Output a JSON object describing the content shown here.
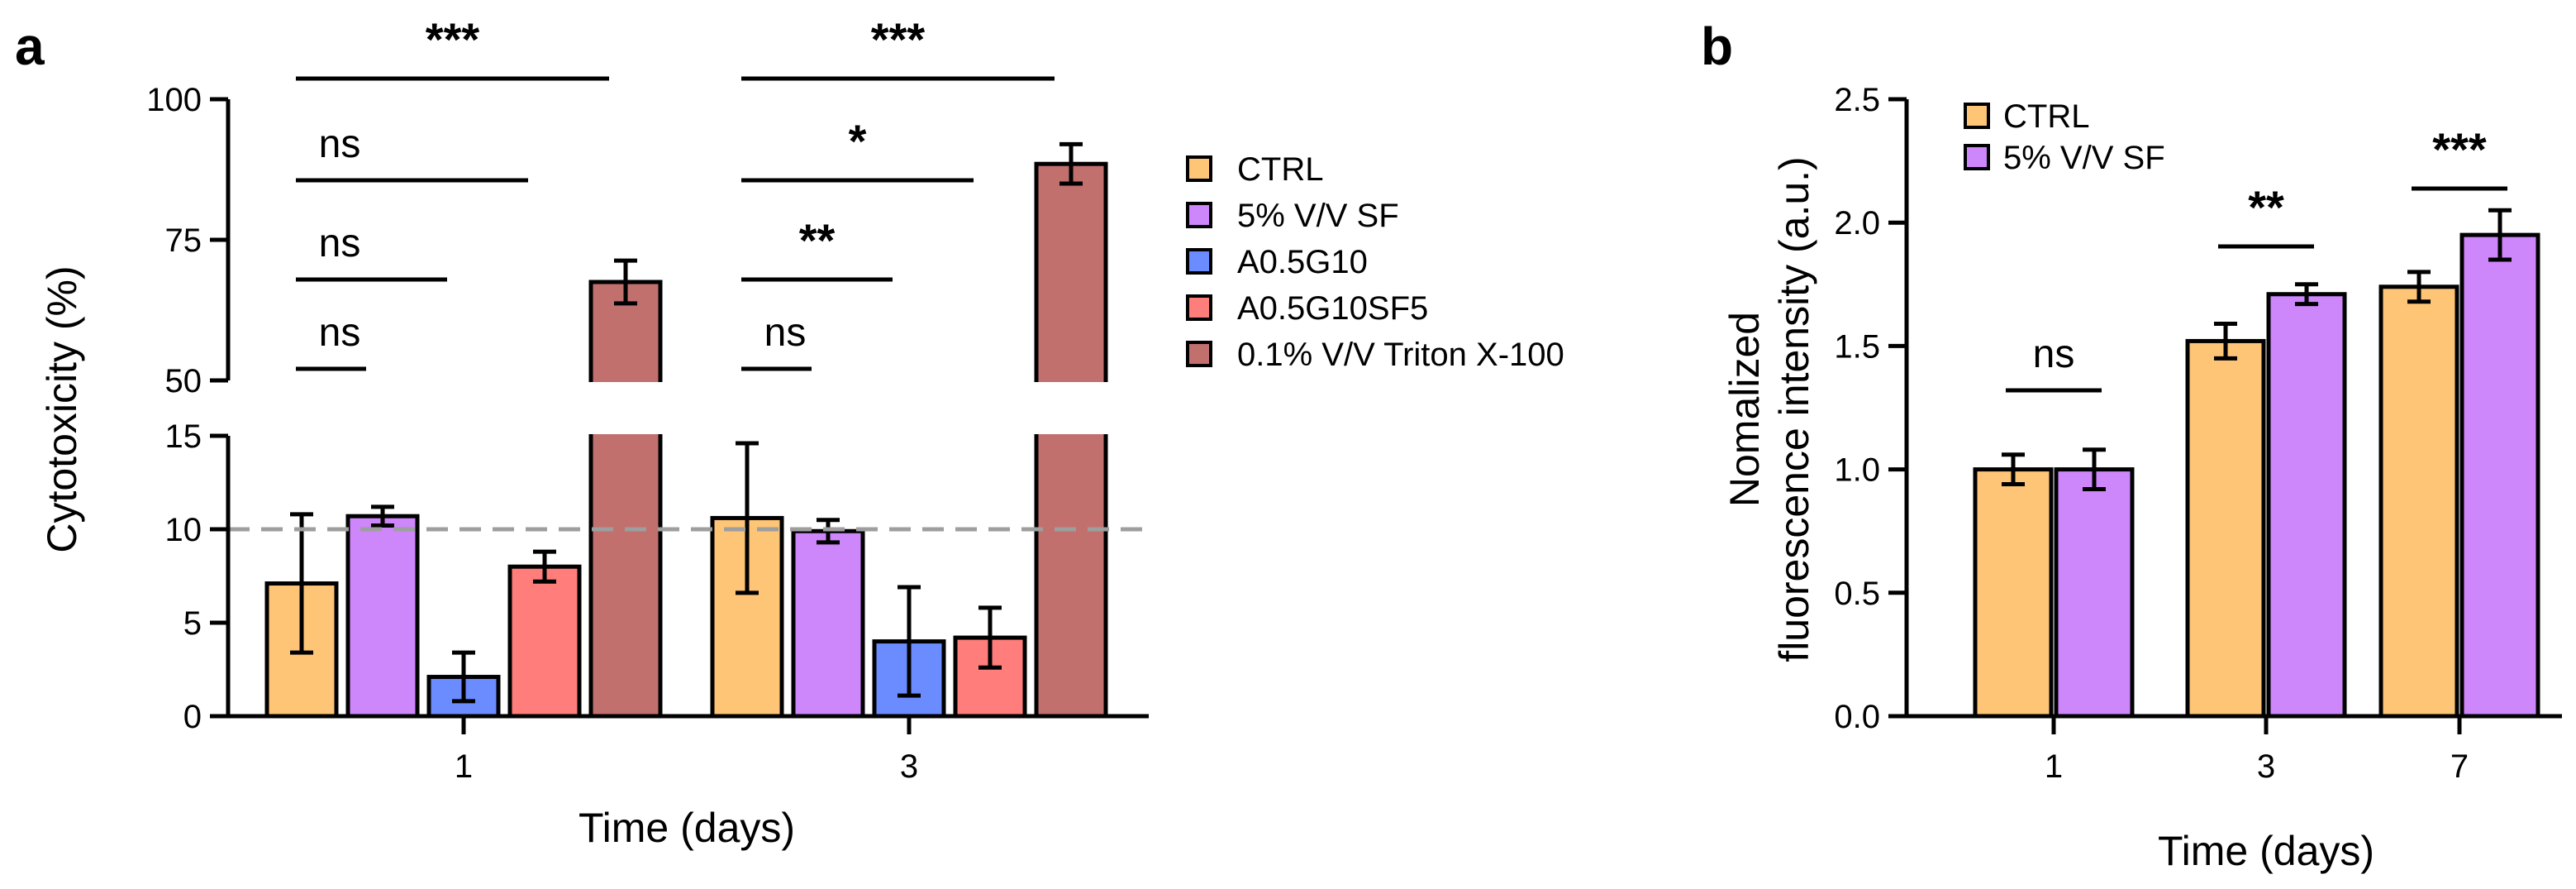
{
  "panels": {
    "a": {
      "letter": "a"
    },
    "b": {
      "letter": "b"
    }
  },
  "colors": {
    "ctrl": "#FFC577",
    "sf": "#CE86FB",
    "a05g10": "#6B8CFF",
    "a05g10sf5": "#FF7D7A",
    "triton": "#C2706E",
    "threshold_line": "#9E9E9E",
    "ink": "#000000"
  },
  "chart_data": [
    {
      "id": "a",
      "type": "bar",
      "title": "",
      "xlabel": "Time (days)",
      "ylabel": "Cytotoxicity (%)",
      "categories": [
        "1",
        "3"
      ],
      "series": [
        {
          "key": "ctrl",
          "name": "CTRL",
          "values": [
            7.1,
            10.6
          ],
          "errors": [
            3.7,
            4.0
          ]
        },
        {
          "key": "sf",
          "name": "5% V/V SF",
          "values": [
            10.7,
            9.9
          ],
          "errors": [
            0.5,
            0.6
          ]
        },
        {
          "key": "a05g10",
          "name": "A0.5G10",
          "values": [
            2.1,
            4.0
          ],
          "errors": [
            1.3,
            2.9
          ]
        },
        {
          "key": "a05g10sf5",
          "name": "A0.5G10SF5",
          "values": [
            8.0,
            4.2
          ],
          "errors": [
            0.8,
            1.6
          ]
        },
        {
          "key": "triton",
          "name": "0.1% V/V Triton X-100",
          "values": [
            67.5,
            88.5
          ],
          "errors": [
            3.8,
            3.5
          ]
        }
      ],
      "axis_break": {
        "lower_range": [
          0,
          15
        ],
        "upper_range": [
          50,
          100
        ]
      },
      "lower_ticks": [
        "0",
        "5",
        "10",
        "15"
      ],
      "upper_ticks": [
        "50",
        "75",
        "100"
      ],
      "reference_line": 10,
      "significance": [
        {
          "category": "1",
          "compare": [
            "CTRL",
            "5% V/V SF"
          ],
          "label": "ns"
        },
        {
          "category": "1",
          "compare": [
            "CTRL",
            "A0.5G10"
          ],
          "label": "ns"
        },
        {
          "category": "1",
          "compare": [
            "CTRL",
            "A0.5G10SF5"
          ],
          "label": "ns"
        },
        {
          "category": "1",
          "compare": [
            "CTRL",
            "0.1% V/V Triton X-100"
          ],
          "label": "***"
        },
        {
          "category": "3",
          "compare": [
            "CTRL",
            "5% V/V SF"
          ],
          "label": "ns"
        },
        {
          "category": "3",
          "compare": [
            "CTRL",
            "A0.5G10"
          ],
          "label": "**"
        },
        {
          "category": "3",
          "compare": [
            "CTRL",
            "A0.5G10SF5"
          ],
          "label": "*"
        },
        {
          "category": "3",
          "compare": [
            "CTRL",
            "0.1% V/V Triton X-100"
          ],
          "label": "***"
        }
      ],
      "legend_position": "right"
    },
    {
      "id": "b",
      "type": "bar",
      "title": "",
      "xlabel": "Time (days)",
      "ylabel_lines": [
        "Nomalized",
        "fluorescence intensity (a.u.)"
      ],
      "categories": [
        "1",
        "3",
        "7"
      ],
      "series": [
        {
          "key": "ctrl",
          "name": "CTRL",
          "values": [
            1.0,
            1.52,
            1.74
          ],
          "errors": [
            0.06,
            0.07,
            0.06
          ]
        },
        {
          "key": "sf",
          "name": "5% V/V SF",
          "values": [
            1.0,
            1.71,
            1.95
          ],
          "errors": [
            0.08,
            0.04,
            0.1
          ]
        }
      ],
      "ylim": [
        0,
        2.5
      ],
      "yticks": [
        "0.0",
        "0.5",
        "1.0",
        "1.5",
        "2.0",
        "2.5"
      ],
      "significance": [
        {
          "category": "1",
          "label": "ns"
        },
        {
          "category": "3",
          "label": "**"
        },
        {
          "category": "7",
          "label": "***"
        }
      ],
      "legend_position": "top-left"
    }
  ]
}
